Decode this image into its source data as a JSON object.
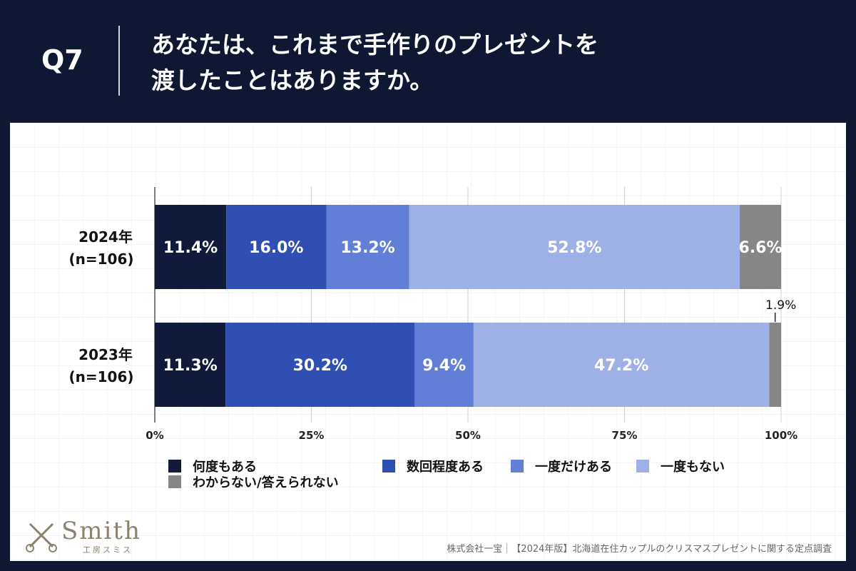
{
  "header": {
    "q_number": "Q7",
    "title_line1": "あなたは、これまで手作りのプレゼントを",
    "title_line2": "渡したことはありますか。"
  },
  "chart_data": {
    "type": "bar",
    "orientation": "horizontal-stacked-100",
    "categories": [
      {
        "label_line1": "2024年",
        "label_line2": "(n=106)"
      },
      {
        "label_line1": "2023年",
        "label_line2": "(n=106)"
      }
    ],
    "series": [
      {
        "name": "何度もある",
        "color": "#111a3b",
        "values": [
          11.4,
          11.3
        ],
        "labels": [
          "11.4%",
          "11.3%"
        ]
      },
      {
        "name": "数回程度ある",
        "color": "#2f4fb3",
        "values": [
          16.0,
          30.2
        ],
        "labels": [
          "16.0%",
          "30.2%"
        ]
      },
      {
        "name": "一度だけある",
        "color": "#627fd8",
        "values": [
          13.2,
          9.4
        ],
        "labels": [
          "13.2%",
          "9.4%"
        ]
      },
      {
        "name": "一度もない",
        "color": "#9eb1e6",
        "values": [
          52.8,
          47.2
        ],
        "labels": [
          "52.8%",
          "47.2%"
        ]
      },
      {
        "name": "わからない/答えられない",
        "color": "#868686",
        "values": [
          6.6,
          1.9
        ],
        "labels": [
          "6.6%",
          "1.9%"
        ]
      }
    ],
    "xlim": [
      0,
      100
    ],
    "x_ticks": [
      0,
      25,
      50,
      75,
      100
    ],
    "x_tick_labels": [
      "0%",
      "25%",
      "50%",
      "75%",
      "100%"
    ],
    "grid": true,
    "legend_position": "bottom"
  },
  "footer": {
    "logo_text": "Smith",
    "logo_sub": "工房スミス",
    "source": "株式会社一宝｜【2024年版】北海道在住カップルのクリスマスプレゼントに関する定点調査"
  }
}
